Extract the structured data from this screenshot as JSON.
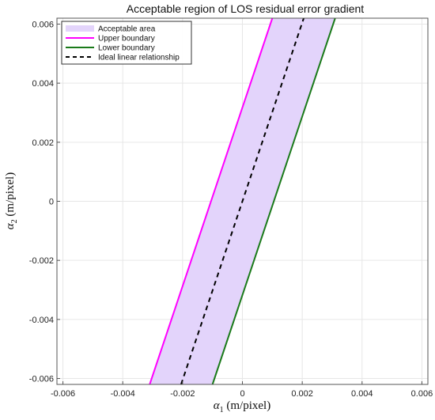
{
  "chart_data": {
    "type": "area",
    "title": "Acceptable region of LOS residual error gradient",
    "xlabel": {
      "symbol": "α",
      "subscript": "1",
      "unit": " (m/pixel)"
    },
    "ylabel": {
      "symbol": "α",
      "subscript": "2",
      "unit": " (m/pixel)"
    },
    "xlim": [
      -0.0062,
      0.0062
    ],
    "ylim": [
      -0.0062,
      0.0062
    ],
    "xticks": [
      -0.006,
      -0.004,
      -0.002,
      0,
      0.002,
      0.004,
      0.006
    ],
    "xtick_labels": [
      "-0.006",
      "-0.004",
      "-0.002",
      "0",
      "0.002",
      "0.004",
      "0.006"
    ],
    "yticks": [
      -0.006,
      -0.004,
      -0.002,
      0,
      0.002,
      0.004,
      0.006
    ],
    "ytick_labels": [
      "-0.006",
      "-0.004",
      "-0.002",
      "0",
      "0.002",
      "0.004",
      "0.006"
    ],
    "grid": true,
    "legend_position": "top-left",
    "series": [
      {
        "name": "Acceptable area",
        "kind": "band",
        "color": "#e3d4fb",
        "x_at_ymin": [
          -0.0031,
          -0.001
        ],
        "x_at_ymax": [
          0.001,
          0.0031
        ]
      },
      {
        "name": "Upper boundary",
        "kind": "line",
        "style": "solid",
        "color": "#ff00ff",
        "x": [
          -0.0031,
          0.001
        ],
        "y": [
          -0.0062,
          0.0062
        ]
      },
      {
        "name": "Lower boundary",
        "kind": "line",
        "style": "solid",
        "color": "#1a7a1a",
        "x": [
          -0.001,
          0.0031
        ],
        "y": [
          -0.0062,
          0.0062
        ]
      },
      {
        "name": "Ideal linear relationship",
        "kind": "line",
        "style": "dashed",
        "color": "#000000",
        "x": [
          -0.00205,
          0.00205
        ],
        "y": [
          -0.0062,
          0.0062
        ]
      }
    ]
  }
}
